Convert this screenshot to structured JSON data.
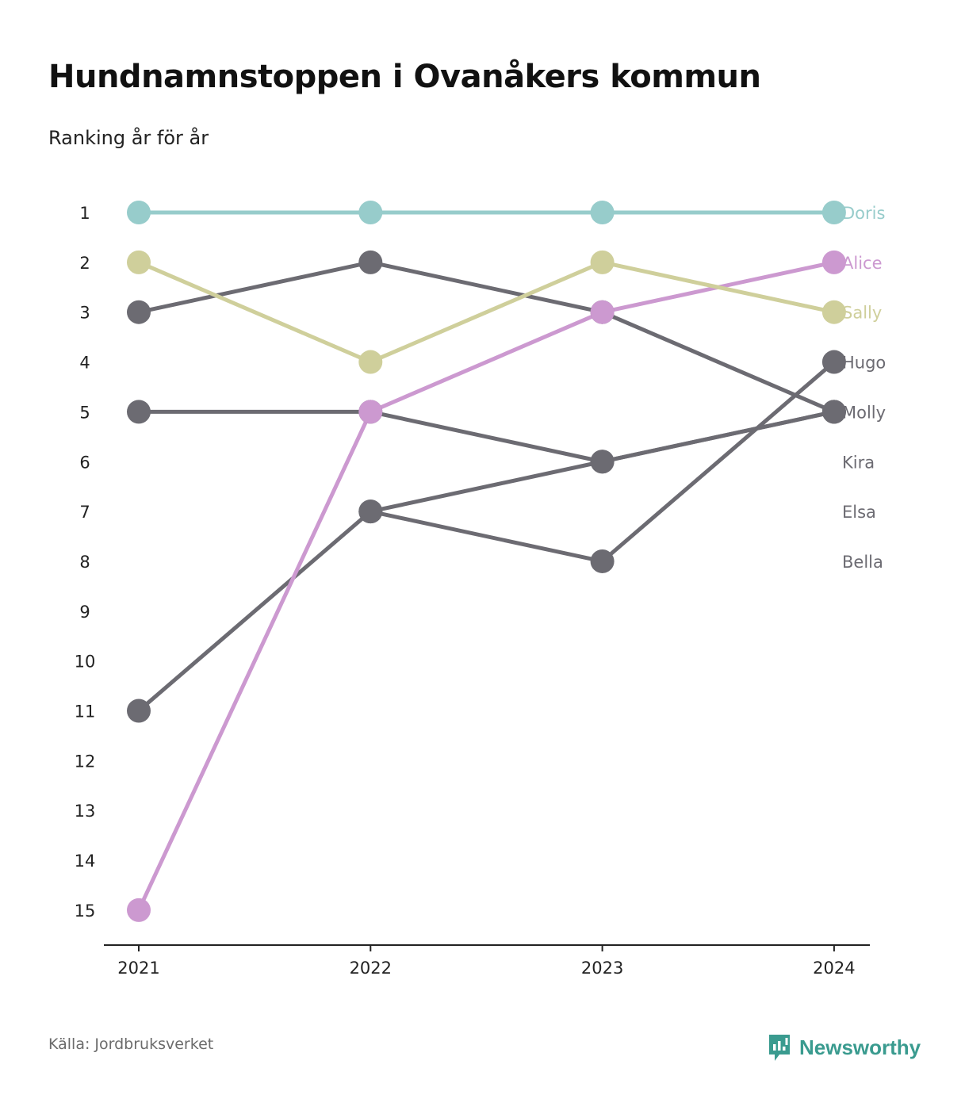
{
  "header": {
    "title": "Hundnamnstoppen i Ovanåkers kommun",
    "subtitle": "Ranking år för år"
  },
  "footer": {
    "source": "Källa: Jordbruksverket",
    "brand": "Newsworthy",
    "brand_color": "#3a9b8f"
  },
  "chart_data": {
    "type": "line",
    "subtype": "bump",
    "x": [
      "2021",
      "2022",
      "2023",
      "2024"
    ],
    "y_ticks": [
      1,
      2,
      3,
      4,
      5,
      6,
      7,
      8,
      9,
      10,
      11,
      12,
      13,
      14,
      15
    ],
    "ylim": [
      1,
      15
    ],
    "y_reversed": true,
    "grid": false,
    "legend": "inline-right",
    "series": [
      {
        "name": "Doris",
        "color": "#97cccb",
        "highlight": true,
        "values": [
          1,
          1,
          1,
          1
        ]
      },
      {
        "name": "Alice",
        "color": "#cc99d0",
        "highlight": true,
        "values": [
          15,
          5,
          3,
          2
        ]
      },
      {
        "name": "Sally",
        "color": "#cfcf9b",
        "highlight": true,
        "values": [
          2,
          4,
          2,
          3
        ]
      },
      {
        "name": "Hugo",
        "color": "#6c6b72",
        "highlight": false,
        "values": [
          11,
          7,
          8,
          4
        ]
      },
      {
        "name": "Molly",
        "color": "#6c6b72",
        "highlight": false,
        "values": [
          3,
          2,
          3,
          5
        ]
      },
      {
        "name": "Kira",
        "color": "#6c6b72",
        "highlight": false,
        "values": [
          5,
          5,
          6,
          5
        ]
      },
      {
        "name": "Elsa",
        "color": "#6c6b72",
        "highlight": false,
        "values": [
          null,
          7,
          6,
          5
        ]
      },
      {
        "name": "Bella",
        "color": "#6c6b72",
        "highlight": false,
        "values": [
          null,
          null,
          null,
          null
        ]
      }
    ],
    "label_rank_order": [
      "Doris",
      "Alice",
      "Sally",
      "Hugo",
      "Molly",
      "Kira",
      "Elsa",
      "Bella"
    ]
  }
}
